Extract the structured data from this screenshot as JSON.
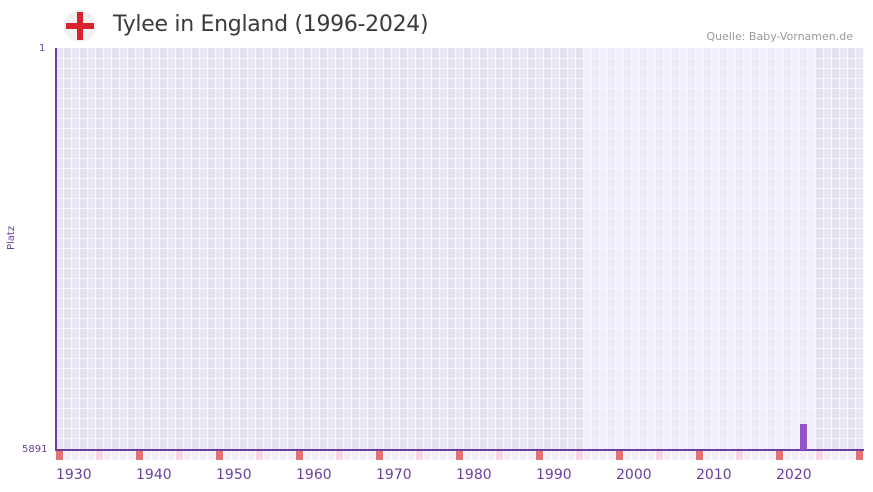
{
  "header": {
    "title": "Tylee in England (1996-2024)",
    "flag_icon": "england-flag-icon",
    "source": "Quelle: Baby-Vornamen.de"
  },
  "colors": {
    "axis": "#6a3fa0",
    "bar": "#8e54c8",
    "grid_bg_outside": "#e4e0ee",
    "grid_bg_outside_alt": "#e9e5f2",
    "grid_bg_highlight": "#efeaf9",
    "grid_bg_highlight_alt": "#f3f0fb",
    "decade_marker": "#e57373",
    "half_decade_marker": "#f6d6e0",
    "strip_bg": "#f2effa",
    "flag_red": "#d7242f"
  },
  "chart_data": {
    "type": "bar",
    "title": "Tylee in England (1996-2024)",
    "xlabel": "",
    "ylabel": "Platz",
    "y_inverted": true,
    "ylim": [
      1,
      5891
    ],
    "xlim": [
      1930,
      2030
    ],
    "highlight_range": [
      1996,
      2024
    ],
    "x_ticks": [
      1930,
      1940,
      1950,
      1960,
      1970,
      1980,
      1990,
      2000,
      2010,
      2020
    ],
    "y_ticks": [
      1,
      5891
    ],
    "grid": true,
    "legend": null,
    "x": [
      2023
    ],
    "values": [
      5510
    ],
    "annotations": [
      "Quelle: Baby-Vornamen.de"
    ]
  },
  "axis": {
    "y_top_label": "1",
    "y_bottom_label": "5891",
    "y_title": "Platz",
    "x_labels": [
      "1930",
      "1940",
      "1950",
      "1960",
      "1970",
      "1980",
      "1990",
      "2000",
      "2010",
      "2020"
    ]
  }
}
